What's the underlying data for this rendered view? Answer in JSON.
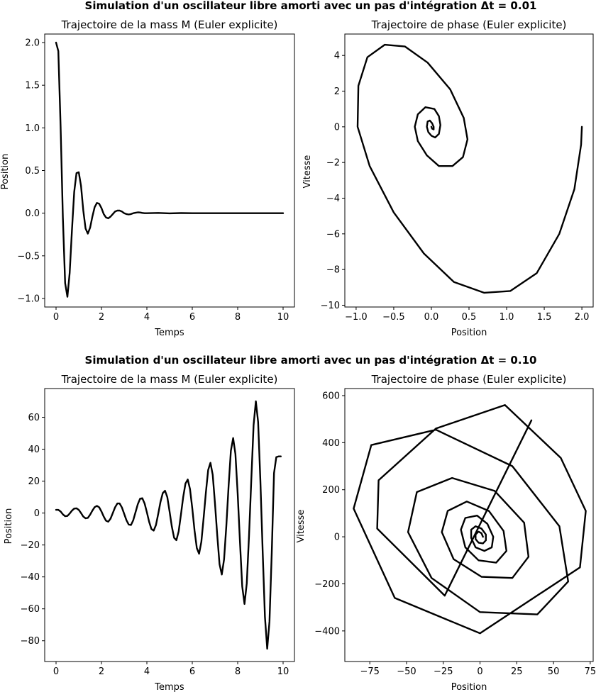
{
  "figure": {
    "suptitle_top": "Simulation d'un oscillateur libre amorti avec un pas d'intégration Δt = 0.01",
    "suptitle_bottom": "Simulation d'un oscillateur libre amorti avec un pas d'intégration Δt = 0.10",
    "line_color": "#000000"
  },
  "chart_data": [
    {
      "id": "dt001-time",
      "type": "line",
      "title": "Trajectoire de la mass M (Euler explicite)",
      "xlabel": "Temps",
      "ylabel": "Position",
      "xlim": [
        -0.5,
        10.5
      ],
      "ylim": [
        -1.1,
        2.1
      ],
      "xticks": [
        0,
        2,
        4,
        6,
        8,
        10
      ],
      "yticks": [
        -1.0,
        -0.5,
        0.0,
        0.5,
        1.0,
        1.5,
        2.0
      ],
      "xticklabels": [
        "0",
        "2",
        "4",
        "6",
        "8",
        "10"
      ],
      "yticklabels": [
        "−1.0",
        "−0.5",
        "0.0",
        "0.5",
        "1.0",
        "1.5",
        "2.0"
      ],
      "grid": false,
      "x": [
        0,
        0.1,
        0.2,
        0.3,
        0.4,
        0.5,
        0.6,
        0.7,
        0.8,
        0.9,
        1.0,
        1.1,
        1.2,
        1.3,
        1.4,
        1.5,
        1.6,
        1.7,
        1.8,
        1.9,
        2.0,
        2.1,
        2.2,
        2.3,
        2.4,
        2.5,
        2.6,
        2.7,
        2.8,
        2.9,
        3.0,
        3.1,
        3.2,
        3.3,
        3.4,
        3.5,
        3.6,
        3.7,
        3.8,
        3.9,
        4.0,
        4.5,
        5.0,
        5.5,
        6.0,
        7.0,
        8.0,
        9.0,
        10.0
      ],
      "y": [
        2.0,
        1.9,
        1.02,
        -0.05,
        -0.82,
        -0.98,
        -0.7,
        -0.2,
        0.25,
        0.47,
        0.48,
        0.32,
        0.03,
        -0.18,
        -0.24,
        -0.17,
        -0.04,
        0.07,
        0.12,
        0.11,
        0.06,
        -0.01,
        -0.05,
        -0.06,
        -0.04,
        -0.01,
        0.02,
        0.03,
        0.03,
        0.02,
        0.0,
        -0.01,
        -0.015,
        -0.01,
        0.0,
        0.005,
        0.01,
        0.008,
        0.003,
        0.0,
        0.0,
        0.003,
        -0.002,
        0.001,
        0.0,
        0.0,
        0.0,
        0.0,
        0.0
      ]
    },
    {
      "id": "dt001-phase",
      "type": "line",
      "title": "Trajectoire de phase (Euler explicite)",
      "xlabel": "Position",
      "ylabel": "Vitesse",
      "xlim": [
        -1.15,
        2.15
      ],
      "ylim": [
        -10.1,
        5.2
      ],
      "xticks": [
        -1.0,
        -0.5,
        0.0,
        0.5,
        1.0,
        1.5,
        2.0
      ],
      "yticks": [
        -10,
        -8,
        -6,
        -4,
        -2,
        0,
        2,
        4
      ],
      "xticklabels": [
        "−1.0",
        "−0.5",
        "0.0",
        "0.5",
        "1.0",
        "1.5",
        "2.0"
      ],
      "yticklabels": [
        "−10",
        "−8",
        "−6",
        "−4",
        "−2",
        "0",
        "2",
        "4"
      ],
      "grid": false,
      "x": [
        2.0,
        1.99,
        1.9,
        1.7,
        1.4,
        1.05,
        0.7,
        0.3,
        -0.1,
        -0.5,
        -0.82,
        -0.98,
        -0.97,
        -0.85,
        -0.62,
        -0.35,
        -0.05,
        0.25,
        0.43,
        0.48,
        0.42,
        0.28,
        0.1,
        -0.06,
        -0.18,
        -0.22,
        -0.18,
        -0.08,
        0.04,
        0.1,
        0.12,
        0.1,
        0.05,
        0.0,
        -0.04,
        -0.06,
        -0.05,
        -0.02,
        0.01,
        0.03,
        0.03,
        0.01,
        0.0
      ],
      "y": [
        0.0,
        -1.0,
        -3.5,
        -6.0,
        -8.2,
        -9.2,
        -9.3,
        -8.7,
        -7.1,
        -4.8,
        -2.2,
        0.0,
        2.3,
        3.9,
        4.6,
        4.5,
        3.6,
        2.1,
        0.5,
        -0.7,
        -1.7,
        -2.2,
        -2.2,
        -1.6,
        -0.8,
        0.0,
        0.7,
        1.1,
        1.0,
        0.6,
        0.1,
        -0.4,
        -0.6,
        -0.5,
        -0.3,
        0.0,
        0.3,
        0.35,
        0.2,
        0.0,
        -0.15,
        -0.1,
        0.0
      ]
    },
    {
      "id": "dt010-time",
      "type": "line",
      "title": "Trajectoire de la mass M (Euler explicite)",
      "xlabel": "Temps",
      "ylabel": "Position",
      "xlim": [
        -0.5,
        10.5
      ],
      "ylim": [
        -93,
        78
      ],
      "xticks": [
        0,
        2,
        4,
        6,
        8,
        10
      ],
      "yticks": [
        -80,
        -60,
        -40,
        -20,
        0,
        20,
        40,
        60
      ],
      "xticklabels": [
        "0",
        "2",
        "4",
        "6",
        "8",
        "10"
      ],
      "yticklabels": [
        "−80",
        "−60",
        "−40",
        "−20",
        "0",
        "20",
        "40",
        "60"
      ],
      "grid": false,
      "x": [
        0,
        0.1,
        0.2,
        0.3,
        0.4,
        0.5,
        0.6,
        0.7,
        0.8,
        0.9,
        1.0,
        1.1,
        1.2,
        1.3,
        1.4,
        1.5,
        1.6,
        1.7,
        1.8,
        1.9,
        2.0,
        2.1,
        2.2,
        2.3,
        2.4,
        2.5,
        2.6,
        2.7,
        2.8,
        2.9,
        3.0,
        3.1,
        3.2,
        3.3,
        3.4,
        3.5,
        3.6,
        3.7,
        3.8,
        3.9,
        4.0,
        4.1,
        4.2,
        4.3,
        4.4,
        4.5,
        4.6,
        4.7,
        4.8,
        4.9,
        5.0,
        5.1,
        5.2,
        5.3,
        5.4,
        5.5,
        5.6,
        5.7,
        5.8,
        5.9,
        6.0,
        6.1,
        6.2,
        6.3,
        6.4,
        6.5,
        6.6,
        6.7,
        6.8,
        6.9,
        7.0,
        7.1,
        7.2,
        7.3,
        7.4,
        7.5,
        7.6,
        7.7,
        7.8,
        7.9,
        8.0,
        8.1,
        8.2,
        8.3,
        8.4,
        8.5,
        8.6,
        8.7,
        8.8,
        8.9,
        9.0,
        9.1,
        9.2,
        9.3,
        9.4,
        9.5,
        9.6,
        9.7,
        9.8,
        9.9
      ],
      "y": [
        2.0,
        2.0,
        1.0,
        -0.8,
        -2.0,
        -1.8,
        -0.3,
        1.5,
        2.8,
        3.0,
        2.0,
        0.0,
        -2.2,
        -3.3,
        -3.0,
        -1.0,
        1.5,
        3.7,
        4.5,
        3.6,
        1.0,
        -2.2,
        -4.8,
        -5.4,
        -3.5,
        0.0,
        3.6,
        6.0,
        6.0,
        3.5,
        -0.5,
        -4.5,
        -7.2,
        -7.5,
        -4.5,
        0.5,
        5.5,
        9.0,
        9.3,
        6.0,
        0.5,
        -5.5,
        -10.0,
        -11.0,
        -7.5,
        -0.5,
        7.0,
        12.5,
        14.0,
        10.0,
        1.0,
        -8.5,
        -15.5,
        -17.0,
        -11.5,
        -1.0,
        10.0,
        18.5,
        21.0,
        15.0,
        3.0,
        -11.0,
        -22.0,
        -25.5,
        -18.0,
        -3.0,
        13.0,
        27.0,
        31.5,
        24.0,
        6.0,
        -14.0,
        -32.0,
        -38.5,
        -29.0,
        -8.0,
        17.0,
        39.0,
        47.0,
        37.0,
        12.0,
        -18.0,
        -46.0,
        -57.0,
        -44.0,
        -14.0,
        21.0,
        55.0,
        70.0,
        57.0,
        20.0,
        -24.0,
        -65.0,
        -85.0,
        -68.0,
        -25.0,
        25.0,
        35.0,
        35.5,
        35.5
      ]
    },
    {
      "id": "dt010-phase",
      "type": "line",
      "title": "Trajectoire de phase (Euler explicite)",
      "xlabel": "Position",
      "ylabel": "Vitesse",
      "xlim": [
        -92,
        77
      ],
      "ylim": [
        -530,
        630
      ],
      "xticks": [
        -75,
        -50,
        -25,
        0,
        25,
        50,
        75
      ],
      "yticks": [
        -400,
        -200,
        0,
        200,
        400,
        600
      ],
      "xticklabels": [
        "−75",
        "−50",
        "−25",
        "0",
        "25",
        "50",
        "75"
      ],
      "yticklabels": [
        "−400",
        "−200",
        "0",
        "200",
        "400",
        "600"
      ],
      "grid": false,
      "x": [
        2,
        1,
        -1,
        -3,
        -3,
        -1,
        2,
        4,
        4,
        1,
        -3,
        -6,
        -6,
        -3,
        3,
        8,
        9,
        5,
        -2,
        -10,
        -13,
        -10,
        -1,
        11,
        18,
        16,
        6,
        -9,
        -22,
        -26,
        -18,
        1,
        22,
        33,
        30,
        10,
        -19,
        -43,
        -49,
        -33,
        0,
        39,
        60,
        54,
        22,
        -30,
        -74,
        -86,
        -58,
        0,
        68,
        72,
        55,
        17,
        -30,
        -69,
        -70,
        -24,
        35
      ],
      "y": [
        0,
        15,
        22,
        10,
        -10,
        -25,
        -28,
        -15,
        10,
        35,
        45,
        30,
        -5,
        -45,
        -60,
        -45,
        0,
        55,
        90,
        80,
        30,
        -45,
        -100,
        -110,
        -60,
        25,
        110,
        150,
        110,
        20,
        -95,
        -170,
        -175,
        -85,
        60,
        195,
        250,
        190,
        20,
        -175,
        -320,
        -330,
        -190,
        45,
        300,
        455,
        390,
        120,
        -260,
        -410,
        -130,
        110,
        335,
        560,
        460,
        240,
        35,
        -250,
        495
      ]
    }
  ]
}
